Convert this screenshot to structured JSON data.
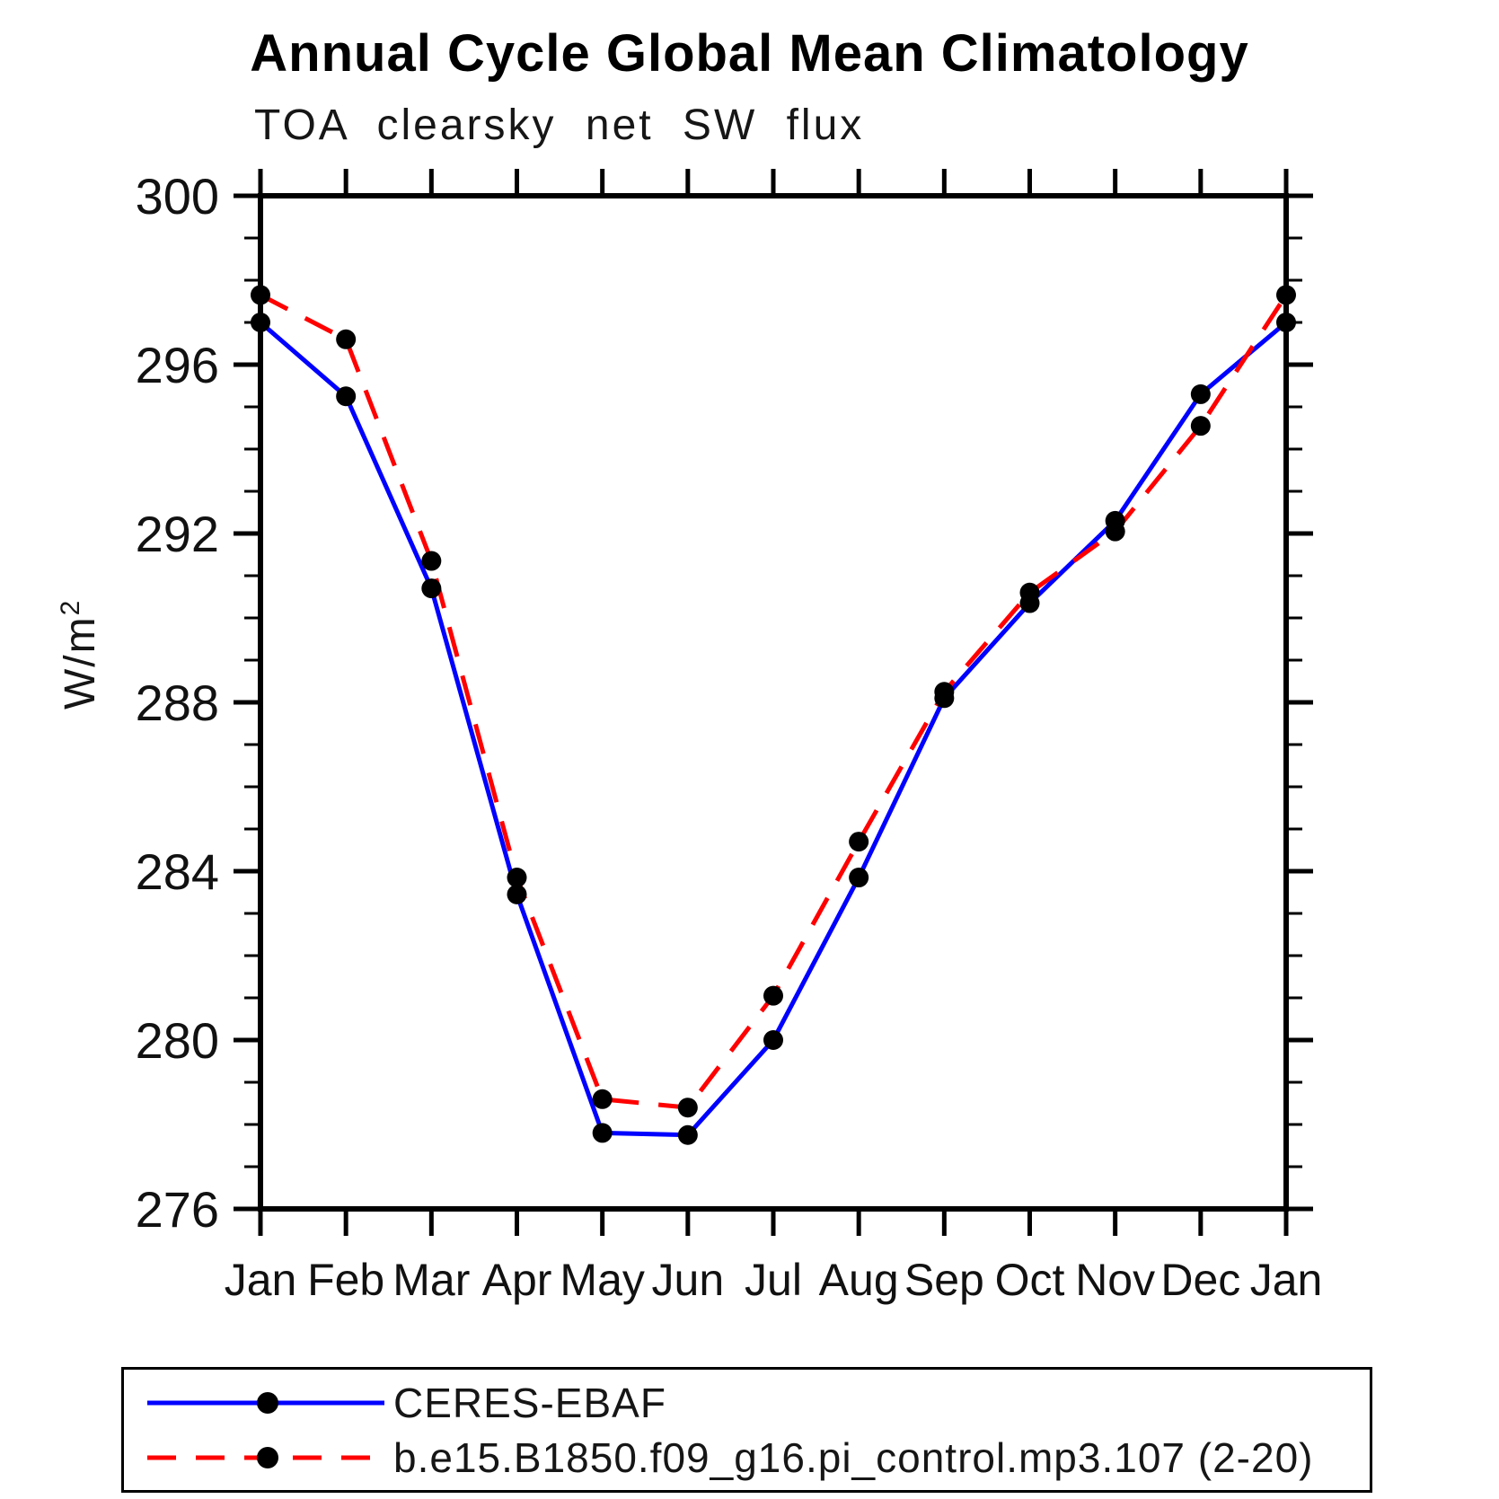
{
  "chart_data": {
    "type": "line",
    "title": "Annual Cycle Global Mean Climatology",
    "subtitle": "TOA clearsky net SW flux",
    "ylabel_base": "W/m",
    "ylabel_exp": "2",
    "categories": [
      "Jan",
      "Feb",
      "Mar",
      "Apr",
      "May",
      "Jun",
      "Jul",
      "Aug",
      "Sep",
      "Oct",
      "Nov",
      "Dec",
      "Jan"
    ],
    "ylim": [
      276,
      300
    ],
    "y_major_ticks": [
      276,
      280,
      284,
      288,
      292,
      296,
      300
    ],
    "y_minor_step": 1,
    "grid": false,
    "legend_position": "bottom",
    "frame_color": "#000000",
    "marker_color": "#000000",
    "series": [
      {
        "name": "CERES-EBAF",
        "color": "#0000ff",
        "style": "solid",
        "values": [
          297.0,
          295.25,
          290.7,
          283.45,
          277.8,
          277.75,
          280.0,
          283.85,
          288.1,
          290.35,
          292.3,
          295.3,
          297.0
        ]
      },
      {
        "name": "b.e15.B1850.f09_g16.pi_control.mp3.107 (2-20)",
        "color": "#ff0000",
        "style": "dashed",
        "values": [
          297.65,
          296.6,
          291.35,
          283.85,
          278.6,
          278.4,
          281.05,
          284.7,
          288.25,
          290.6,
          292.05,
          294.55,
          297.65
        ]
      }
    ]
  }
}
